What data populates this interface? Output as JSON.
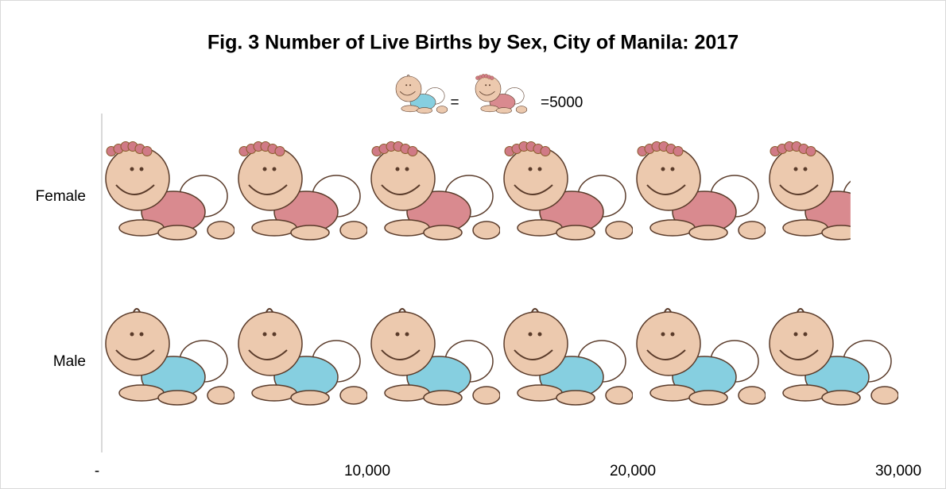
{
  "chart_data": {
    "type": "pictograph",
    "title": "Fig. 3 Number of Live Births by Sex, City of Manila: 2017",
    "legend": {
      "equals": "=",
      "unit": {
        "value": 5000,
        "label": "=5000"
      }
    },
    "categories": [
      "Female",
      "Male"
    ],
    "series": [
      {
        "name": "Female",
        "color": "#d98a8f",
        "values": [
          28200,
          null
        ]
      },
      {
        "name": "Male",
        "color": "#86cfe0",
        "values": [
          null,
          30100
        ]
      }
    ],
    "xlim": [
      0,
      30000
    ],
    "xticks": [
      {
        "value": 0,
        "label": "-"
      },
      {
        "value": 10000,
        "label": "10,000"
      },
      {
        "value": 20000,
        "label": "20,000"
      },
      {
        "value": 30000,
        "label": "30,000"
      }
    ]
  }
}
